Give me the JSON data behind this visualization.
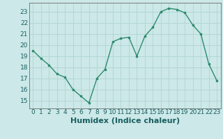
{
  "x": [
    0,
    1,
    2,
    3,
    4,
    5,
    6,
    7,
    8,
    9,
    10,
    11,
    12,
    13,
    14,
    15,
    16,
    17,
    18,
    19,
    20,
    21,
    22,
    23
  ],
  "y": [
    19.5,
    18.8,
    18.2,
    17.4,
    17.1,
    16.0,
    15.4,
    14.8,
    17.0,
    17.8,
    20.3,
    20.6,
    20.7,
    19.0,
    20.8,
    21.6,
    23.0,
    23.3,
    23.2,
    22.9,
    21.8,
    21.0,
    18.3,
    16.8
  ],
  "xlabel": "Humidex (Indice chaleur)",
  "xlim": [
    -0.5,
    23.5
  ],
  "ylim": [
    14.3,
    23.8
  ],
  "yticks": [
    15,
    16,
    17,
    18,
    19,
    20,
    21,
    22,
    23
  ],
  "xticks": [
    0,
    1,
    2,
    3,
    4,
    5,
    6,
    7,
    8,
    9,
    10,
    11,
    12,
    13,
    14,
    15,
    16,
    17,
    18,
    19,
    20,
    21,
    22,
    23
  ],
  "line_color": "#2e8b6e",
  "marker_color": "#2e8b6e",
  "bg_color": "#cce8e8",
  "grid_color": "#b0d4d4",
  "tick_label_fontsize": 6.5,
  "xlabel_fontsize": 8
}
